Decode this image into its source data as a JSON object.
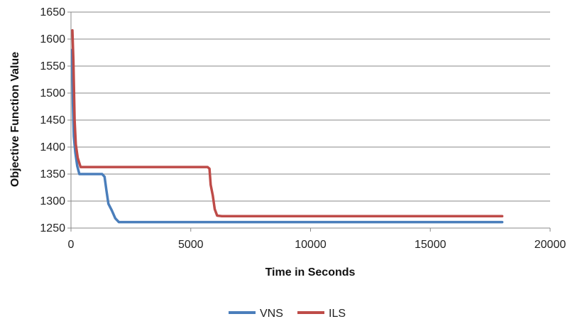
{
  "chart_data": {
    "type": "line",
    "title": "",
    "xlabel": "Time in Seconds",
    "ylabel": "Objective Function Value",
    "xlim": [
      0,
      20000
    ],
    "ylim": [
      1250,
      1650
    ],
    "x_ticks": [
      0,
      5000,
      10000,
      15000,
      20000
    ],
    "y_ticks": [
      1250,
      1300,
      1350,
      1400,
      1450,
      1500,
      1550,
      1600,
      1650
    ],
    "grid": {
      "horizontal": true,
      "vertical": false
    },
    "legend_position": "bottom",
    "series": [
      {
        "name": "VNS",
        "color": "#4a7ebb",
        "points": [
          [
            50,
            1580
          ],
          [
            80,
            1480
          ],
          [
            120,
            1420
          ],
          [
            180,
            1390
          ],
          [
            260,
            1365
          ],
          [
            350,
            1350
          ],
          [
            800,
            1350
          ],
          [
            1300,
            1350
          ],
          [
            1400,
            1345
          ],
          [
            1480,
            1320
          ],
          [
            1560,
            1295
          ],
          [
            1700,
            1283
          ],
          [
            1850,
            1268
          ],
          [
            2000,
            1261
          ],
          [
            5000,
            1261
          ],
          [
            10000,
            1261
          ],
          [
            15000,
            1261
          ],
          [
            18000,
            1261
          ]
        ]
      },
      {
        "name": "ILS",
        "color": "#be4b48",
        "points": [
          [
            60,
            1616
          ],
          [
            100,
            1560
          ],
          [
            150,
            1450
          ],
          [
            200,
            1405
          ],
          [
            280,
            1380
          ],
          [
            400,
            1363
          ],
          [
            2000,
            1363
          ],
          [
            5000,
            1363
          ],
          [
            5700,
            1363
          ],
          [
            5780,
            1360
          ],
          [
            5830,
            1330
          ],
          [
            5920,
            1310
          ],
          [
            6000,
            1285
          ],
          [
            6100,
            1273
          ],
          [
            6300,
            1272
          ],
          [
            10000,
            1272
          ],
          [
            15000,
            1272
          ],
          [
            18000,
            1272
          ]
        ]
      }
    ]
  }
}
